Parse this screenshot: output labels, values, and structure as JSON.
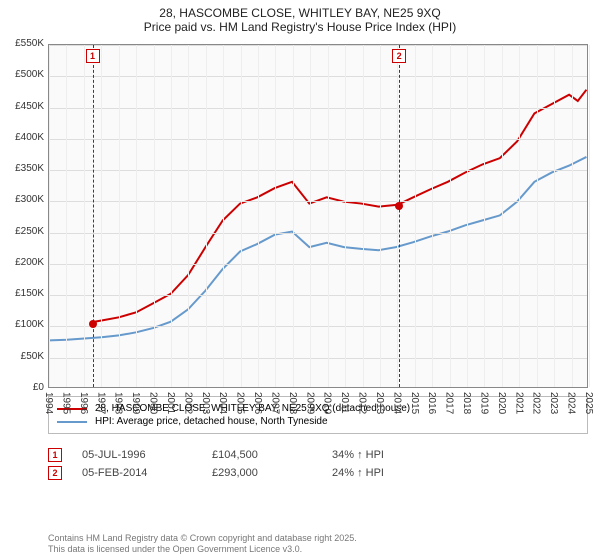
{
  "title": {
    "line1": "28, HASCOMBE CLOSE, WHITLEY BAY, NE25 9XQ",
    "line2": "Price paid vs. HM Land Registry's House Price Index (HPI)"
  },
  "chart": {
    "type": "line",
    "background_color": "#fafafa",
    "grid_color": "#dddddd",
    "axis_color": "#888888",
    "label_fontsize": 10,
    "title_fontsize": 12,
    "y": {
      "min": 0,
      "max": 550000,
      "step": 50000,
      "ticks": [
        "£0",
        "£50K",
        "£100K",
        "£150K",
        "£200K",
        "£250K",
        "£300K",
        "£350K",
        "£400K",
        "£450K",
        "£500K",
        "£550K"
      ]
    },
    "x": {
      "min": 1994,
      "max": 2025,
      "step": 1,
      "ticks": [
        "1994",
        "1995",
        "1996",
        "1997",
        "1998",
        "1999",
        "2000",
        "2001",
        "2002",
        "2003",
        "2004",
        "2005",
        "2006",
        "2007",
        "2008",
        "2009",
        "2010",
        "2011",
        "2012",
        "2013",
        "2014",
        "2015",
        "2016",
        "2017",
        "2018",
        "2019",
        "2020",
        "2021",
        "2022",
        "2023",
        "2024",
        "2025"
      ]
    },
    "series": [
      {
        "name": "28, HASCOMBE CLOSE, WHITLEY BAY, NE25 9XQ (detached house)",
        "color": "#cc0000",
        "line_width": 2,
        "points": [
          [
            1996.5,
            104500
          ],
          [
            1997,
            107000
          ],
          [
            1998,
            112000
          ],
          [
            1999,
            120000
          ],
          [
            2000,
            135000
          ],
          [
            2001,
            150000
          ],
          [
            2002,
            180000
          ],
          [
            2003,
            225000
          ],
          [
            2004,
            268000
          ],
          [
            2005,
            295000
          ],
          [
            2006,
            305000
          ],
          [
            2007,
            320000
          ],
          [
            2008,
            330000
          ],
          [
            2009,
            295000
          ],
          [
            2010,
            305000
          ],
          [
            2011,
            298000
          ],
          [
            2012,
            295000
          ],
          [
            2013,
            290000
          ],
          [
            2014.1,
            293000
          ],
          [
            2015,
            305000
          ],
          [
            2016,
            318000
          ],
          [
            2017,
            330000
          ],
          [
            2018,
            345000
          ],
          [
            2019,
            358000
          ],
          [
            2020,
            368000
          ],
          [
            2021,
            395000
          ],
          [
            2022,
            440000
          ],
          [
            2023,
            455000
          ],
          [
            2024,
            470000
          ],
          [
            2024.5,
            460000
          ],
          [
            2025,
            478000
          ]
        ]
      },
      {
        "name": "HPI: Average price, detached house, North Tyneside",
        "color": "#6699cc",
        "line_width": 2,
        "points": [
          [
            1994,
            75000
          ],
          [
            1995,
            76000
          ],
          [
            1996,
            78000
          ],
          [
            1997,
            80000
          ],
          [
            1998,
            83000
          ],
          [
            1999,
            88000
          ],
          [
            2000,
            95000
          ],
          [
            2001,
            105000
          ],
          [
            2002,
            125000
          ],
          [
            2003,
            155000
          ],
          [
            2004,
            190000
          ],
          [
            2005,
            218000
          ],
          [
            2006,
            230000
          ],
          [
            2007,
            245000
          ],
          [
            2008,
            250000
          ],
          [
            2009,
            225000
          ],
          [
            2010,
            232000
          ],
          [
            2011,
            225000
          ],
          [
            2012,
            222000
          ],
          [
            2013,
            220000
          ],
          [
            2014,
            225000
          ],
          [
            2015,
            233000
          ],
          [
            2016,
            242000
          ],
          [
            2017,
            250000
          ],
          [
            2018,
            260000
          ],
          [
            2019,
            268000
          ],
          [
            2020,
            276000
          ],
          [
            2021,
            298000
          ],
          [
            2022,
            330000
          ],
          [
            2023,
            345000
          ],
          [
            2024,
            356000
          ],
          [
            2025,
            370000
          ]
        ]
      }
    ],
    "markers": [
      {
        "n": "1",
        "x": 1996.5,
        "y": 104500,
        "color": "#cc0000"
      },
      {
        "n": "2",
        "x": 2014.1,
        "y": 293000,
        "color": "#cc0000"
      }
    ]
  },
  "legend": {
    "items": [
      {
        "color": "#cc0000",
        "label": "28, HASCOMBE CLOSE, WHITLEY BAY, NE25 9XQ (detached house)"
      },
      {
        "color": "#6699cc",
        "label": "HPI: Average price, detached house, North Tyneside"
      }
    ]
  },
  "transactions": [
    {
      "n": "1",
      "color": "#cc0000",
      "date": "05-JUL-1996",
      "price": "£104,500",
      "hpi": "34% ↑ HPI"
    },
    {
      "n": "2",
      "color": "#cc0000",
      "date": "05-FEB-2014",
      "price": "£293,000",
      "hpi": "24% ↑ HPI"
    }
  ],
  "footer": {
    "line1": "Contains HM Land Registry data © Crown copyright and database right 2025.",
    "line2": "This data is licensed under the Open Government Licence v3.0."
  }
}
